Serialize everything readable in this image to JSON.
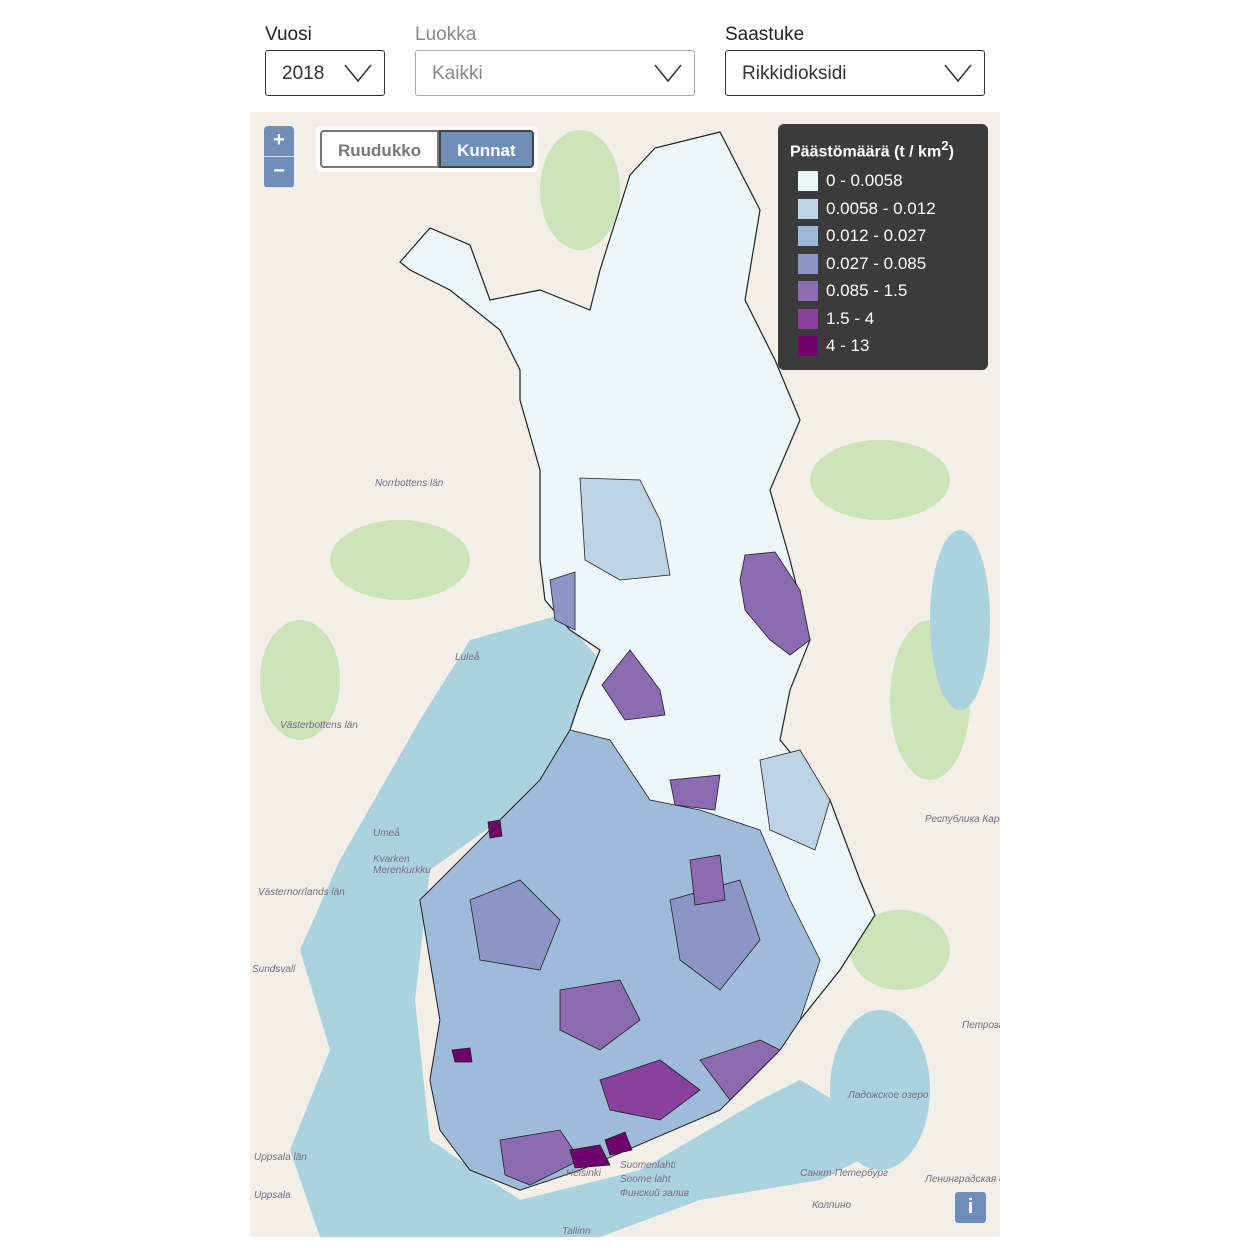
{
  "controls": [
    {
      "label": "Vuosi",
      "value": "2018"
    },
    {
      "label": "Luokka",
      "value": "Kaikki"
    },
    {
      "label": "Saastuke",
      "value": "Rikkidioksidi"
    }
  ],
  "zoom": {
    "in": "+",
    "out": "−"
  },
  "toggle": {
    "options": [
      "Ruudukko",
      "Kunnat"
    ]
  },
  "legend": {
    "title": "Päästömäärä (t / km",
    "title_sup": "2",
    "title_end": ")",
    "items": [
      {
        "label": "0 - 0.0058",
        "color": "#edf8fb"
      },
      {
        "label": "0.0058 - 0.012",
        "color": "#bfd3e6"
      },
      {
        "label": "0.012 - 0.027",
        "color": "#9ebcda"
      },
      {
        "label": "0.027 - 0.085",
        "color": "#8c96c6"
      },
      {
        "label": "0.085 - 1.5",
        "color": "#8c6bb1"
      },
      {
        "label": "1.5 - 4",
        "color": "#88419d"
      },
      {
        "label": "4 - 13",
        "color": "#6e016b"
      }
    ]
  },
  "map_labels": {
    "norrbotten": "Norrbottens län",
    "lulea": "Luleå",
    "vasterbotten": "Västerbottens län",
    "umea": "Umeå",
    "kvarken": "Kvarken",
    "merenkurkku": "Merenkurkku",
    "vasternorrland": "Västernorrlands län",
    "sundsvall": "Sundsvall",
    "uppsala_lan": "Uppsala län",
    "uppsala": "Uppsala",
    "helsinki": "Helsinki",
    "tallinn": "Tallinn",
    "spb": "Санкт-Петербург",
    "kolpino": "Колпино",
    "petrozavodsk": "Петрозаводск",
    "ladoga": "Ладожское озеро",
    "leningrad": "Ленинградская область",
    "karelia": "Республика Карелия",
    "suomenlahti": "Suomenlahti",
    "soome": "Soome laht",
    "finskiy": "Финский залив"
  },
  "info": "i"
}
